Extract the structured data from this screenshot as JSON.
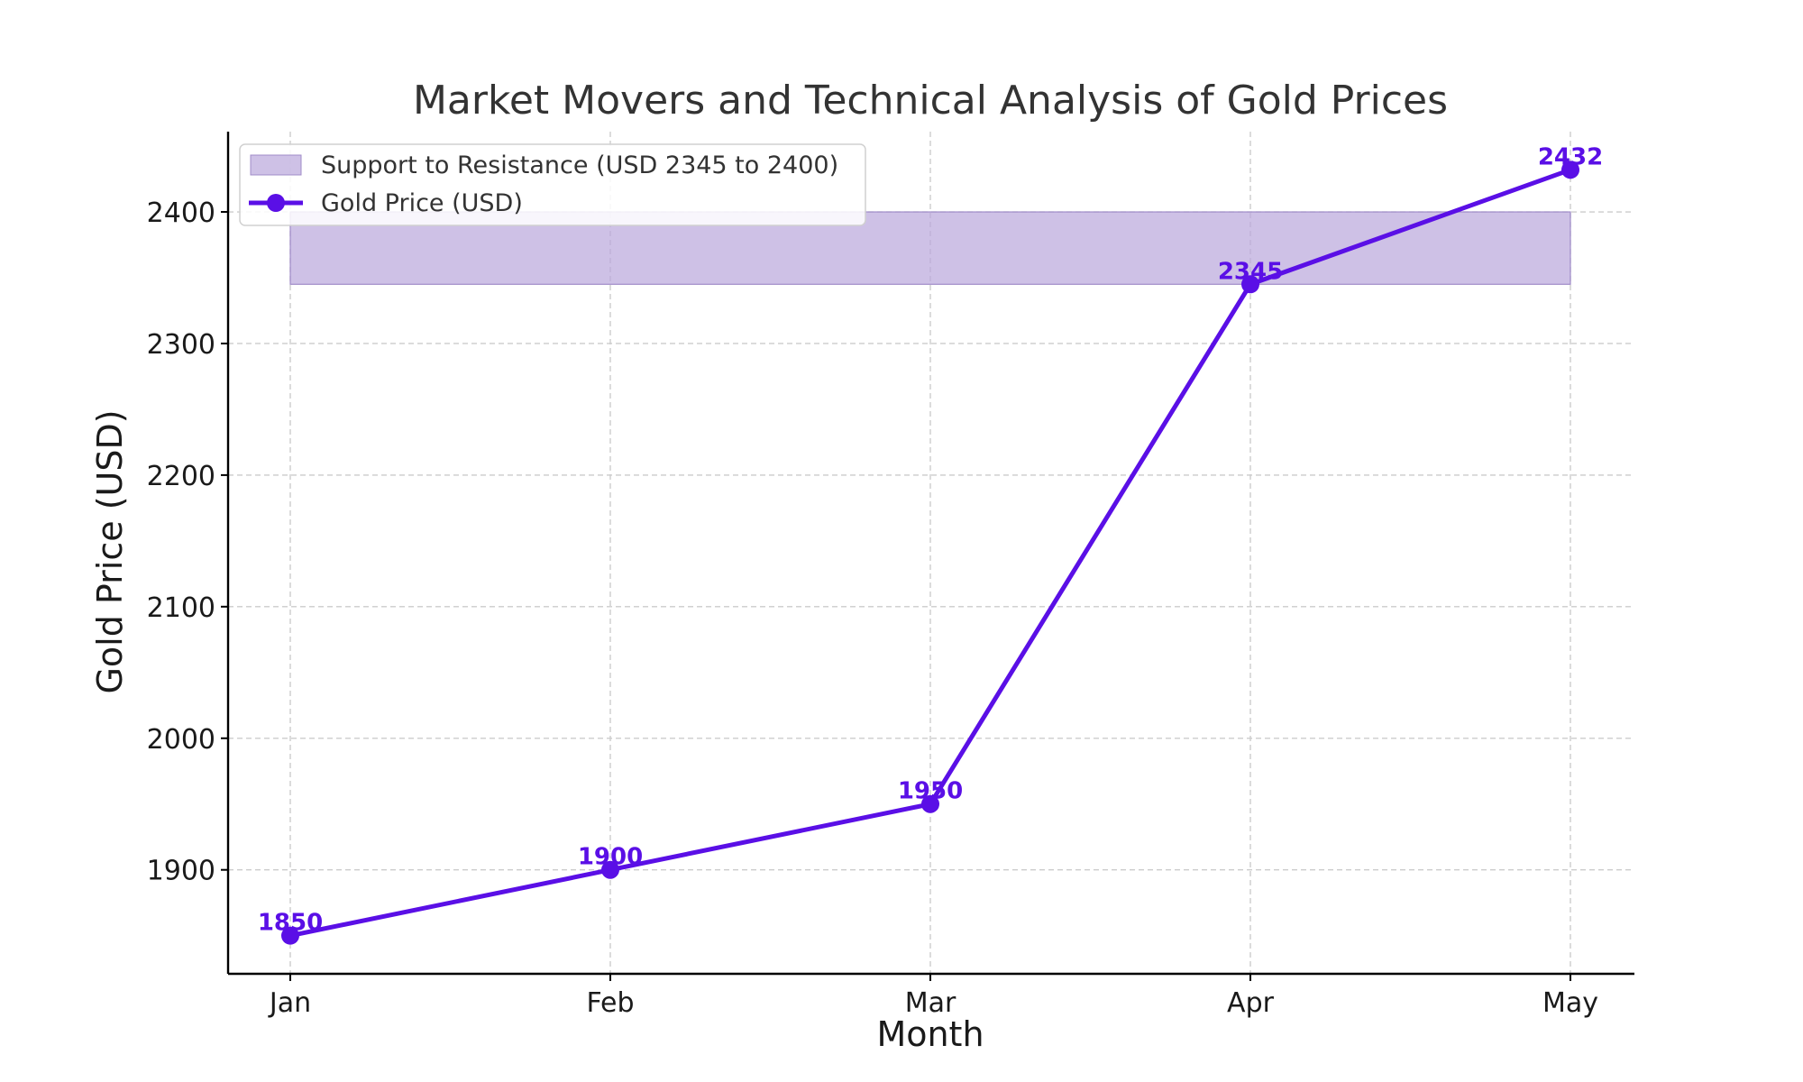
{
  "chart_data": {
    "type": "line",
    "title": "Market Movers and Technical Analysis of Gold Prices",
    "xlabel": "Month",
    "ylabel": "Gold Price (USD)",
    "categories": [
      "Jan",
      "Feb",
      "Mar",
      "Apr",
      "May"
    ],
    "series": [
      {
        "name": "Gold Price (USD)",
        "values": [
          1850,
          1900,
          1950,
          2345,
          2432
        ],
        "color": "#5a0fe6"
      }
    ],
    "band": {
      "name": "Support to Resistance (USD 2345 to 2400)",
      "from": 2345,
      "to": 2400,
      "color": "#b9a6dc"
    },
    "yticks": [
      1900,
      2000,
      2100,
      2200,
      2300,
      2400
    ],
    "ylim": [
      1821,
      2461
    ],
    "grid": true,
    "legend_position": "top-left"
  }
}
